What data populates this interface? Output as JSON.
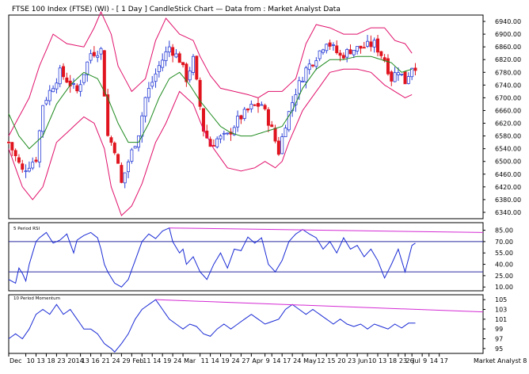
{
  "header": {
    "title": "FTSE 100 Index (FTSE) (WI) -  [ 1 Day ] CandleStick Chart — Data from : Market Analyst Data"
  },
  "panels": {
    "rsi_label": "5 Period RSI",
    "momentum_label": "10 Period Momentum"
  },
  "footer": {
    "source": "Market Analyst 8"
  },
  "colors": {
    "up": "#2a3fd6",
    "down": "#e0141e",
    "band": "#e0106a",
    "mid": "#1e8a1e",
    "indicator": "#1a2bd4",
    "trend": "#d42ad4",
    "ref": "#2a2aa0"
  },
  "chart_data": [
    {
      "type": "candlestick",
      "name": "price",
      "title": "FTSE 100 Index (FTSE) (WI) -  [ 1 Day ] CandleStick Chart — Data from : Market Analyst Data",
      "ylim": [
        6320,
        6960
      ],
      "yticks": [
        6340,
        6380,
        6420,
        6460,
        6500,
        6540,
        6580,
        6620,
        6660,
        6700,
        6740,
        6780,
        6820,
        6860,
        6900,
        6940
      ],
      "indicators": [
        "Bollinger Bands (upper, lower)",
        "Moving Average (middle)"
      ],
      "close_path": [
        [
          0,
          6560
        ],
        [
          4,
          6470
        ],
        [
          8,
          6510
        ],
        [
          10,
          6680
        ],
        [
          15,
          6780
        ],
        [
          20,
          6720
        ],
        [
          24,
          6840
        ],
        [
          27,
          6850
        ],
        [
          29,
          6580
        ],
        [
          31,
          6540
        ],
        [
          33,
          6430
        ],
        [
          35,
          6500
        ],
        [
          38,
          6590
        ],
        [
          40,
          6700
        ],
        [
          44,
          6800
        ],
        [
          47,
          6860
        ],
        [
          50,
          6820
        ],
        [
          52,
          6760
        ],
        [
          54,
          6820
        ],
        [
          57,
          6600
        ],
        [
          59,
          6550
        ],
        [
          61,
          6570
        ],
        [
          64,
          6580
        ],
        [
          67,
          6630
        ],
        [
          71,
          6670
        ],
        [
          74,
          6680
        ],
        [
          77,
          6600
        ],
        [
          79,
          6530
        ],
        [
          81,
          6620
        ],
        [
          84,
          6720
        ],
        [
          87,
          6790
        ],
        [
          90,
          6830
        ],
        [
          93,
          6880
        ],
        [
          97,
          6830
        ],
        [
          100,
          6850
        ],
        [
          104,
          6860
        ],
        [
          107,
          6870
        ],
        [
          110,
          6820
        ],
        [
          112,
          6760
        ],
        [
          114,
          6790
        ],
        [
          116,
          6750
        ],
        [
          118,
          6800
        ]
      ],
      "upper_band_path": [
        [
          0,
          6580
        ],
        [
          6,
          6700
        ],
        [
          9,
          6800
        ],
        [
          13,
          6900
        ],
        [
          17,
          6870
        ],
        [
          22,
          6860
        ],
        [
          25,
          6920
        ],
        [
          27,
          6970
        ],
        [
          30,
          6900
        ],
        [
          32,
          6800
        ],
        [
          36,
          6720
        ],
        [
          40,
          6760
        ],
        [
          43,
          6880
        ],
        [
          46,
          6950
        ],
        [
          50,
          6900
        ],
        [
          54,
          6880
        ],
        [
          56,
          6830
        ],
        [
          59,
          6770
        ],
        [
          62,
          6730
        ],
        [
          66,
          6720
        ],
        [
          70,
          6710
        ],
        [
          73,
          6700
        ],
        [
          76,
          6720
        ],
        [
          80,
          6720
        ],
        [
          84,
          6760
        ],
        [
          87,
          6870
        ],
        [
          90,
          6930
        ],
        [
          94,
          6920
        ],
        [
          98,
          6900
        ],
        [
          102,
          6900
        ],
        [
          106,
          6920
        ],
        [
          110,
          6920
        ],
        [
          113,
          6880
        ],
        [
          116,
          6870
        ],
        [
          118,
          6840
        ]
      ],
      "lower_band_path": [
        [
          0,
          6540
        ],
        [
          4,
          6420
        ],
        [
          7,
          6380
        ],
        [
          10,
          6420
        ],
        [
          14,
          6560
        ],
        [
          18,
          6600
        ],
        [
          22,
          6640
        ],
        [
          25,
          6620
        ],
        [
          28,
          6540
        ],
        [
          30,
          6420
        ],
        [
          33,
          6330
        ],
        [
          36,
          6360
        ],
        [
          39,
          6430
        ],
        [
          43,
          6560
        ],
        [
          46,
          6620
        ],
        [
          50,
          6720
        ],
        [
          54,
          6680
        ],
        [
          57,
          6600
        ],
        [
          60,
          6540
        ],
        [
          64,
          6480
        ],
        [
          68,
          6470
        ],
        [
          72,
          6480
        ],
        [
          75,
          6500
        ],
        [
          78,
          6480
        ],
        [
          80,
          6500
        ],
        [
          82,
          6560
        ],
        [
          86,
          6660
        ],
        [
          90,
          6720
        ],
        [
          94,
          6780
        ],
        [
          98,
          6790
        ],
        [
          102,
          6790
        ],
        [
          106,
          6780
        ],
        [
          110,
          6740
        ],
        [
          113,
          6720
        ],
        [
          116,
          6700
        ],
        [
          118,
          6710
        ]
      ],
      "middle_path": [
        [
          0,
          6650
        ],
        [
          3,
          6580
        ],
        [
          6,
          6540
        ],
        [
          10,
          6580
        ],
        [
          14,
          6680
        ],
        [
          18,
          6740
        ],
        [
          22,
          6780
        ],
        [
          26,
          6760
        ],
        [
          29,
          6700
        ],
        [
          32,
          6620
        ],
        [
          35,
          6560
        ],
        [
          38,
          6560
        ],
        [
          41,
          6620
        ],
        [
          44,
          6700
        ],
        [
          47,
          6760
        ],
        [
          50,
          6780
        ],
        [
          53,
          6740
        ],
        [
          56,
          6690
        ],
        [
          59,
          6650
        ],
        [
          62,
          6610
        ],
        [
          65,
          6590
        ],
        [
          68,
          6580
        ],
        [
          71,
          6580
        ],
        [
          74,
          6590
        ],
        [
          77,
          6600
        ],
        [
          80,
          6610
        ],
        [
          83,
          6660
        ],
        [
          86,
          6730
        ],
        [
          90,
          6790
        ],
        [
          94,
          6820
        ],
        [
          98,
          6820
        ],
        [
          102,
          6830
        ],
        [
          106,
          6830
        ],
        [
          109,
          6820
        ],
        [
          112,
          6810
        ],
        [
          115,
          6780
        ],
        [
          118,
          6790
        ]
      ]
    },
    {
      "type": "line",
      "name": "5 Period RSI",
      "title": "5 Period RSI",
      "ylim": [
        5,
        95
      ],
      "yticks": [
        10.0,
        25.0,
        40.0,
        55.0,
        70.0,
        85.0
      ],
      "reference_lines": [
        70,
        30
      ],
      "path": [
        [
          0,
          20
        ],
        [
          2,
          15
        ],
        [
          3,
          35
        ],
        [
          4,
          28
        ],
        [
          5,
          18
        ],
        [
          6,
          40
        ],
        [
          8,
          70
        ],
        [
          9,
          75
        ],
        [
          11,
          82
        ],
        [
          13,
          68
        ],
        [
          15,
          72
        ],
        [
          17,
          80
        ],
        [
          19,
          55
        ],
        [
          20,
          72
        ],
        [
          22,
          78
        ],
        [
          24,
          82
        ],
        [
          26,
          75
        ],
        [
          27,
          60
        ],
        [
          28,
          40
        ],
        [
          29,
          30
        ],
        [
          31,
          15
        ],
        [
          33,
          10
        ],
        [
          35,
          20
        ],
        [
          37,
          45
        ],
        [
          39,
          70
        ],
        [
          41,
          80
        ],
        [
          43,
          74
        ],
        [
          45,
          84
        ],
        [
          47,
          88
        ],
        [
          48,
          70
        ],
        [
          50,
          55
        ],
        [
          51,
          60
        ],
        [
          52,
          40
        ],
        [
          54,
          50
        ],
        [
          56,
          30
        ],
        [
          58,
          20
        ],
        [
          60,
          40
        ],
        [
          62,
          55
        ],
        [
          64,
          35
        ],
        [
          66,
          60
        ],
        [
          68,
          58
        ],
        [
          70,
          76
        ],
        [
          72,
          68
        ],
        [
          74,
          75
        ],
        [
          76,
          40
        ],
        [
          78,
          30
        ],
        [
          80,
          45
        ],
        [
          82,
          70
        ],
        [
          84,
          80
        ],
        [
          86,
          86
        ],
        [
          88,
          80
        ],
        [
          90,
          75
        ],
        [
          92,
          60
        ],
        [
          94,
          70
        ],
        [
          96,
          55
        ],
        [
          98,
          75
        ],
        [
          100,
          60
        ],
        [
          102,
          65
        ],
        [
          104,
          50
        ],
        [
          106,
          60
        ],
        [
          108,
          45
        ],
        [
          110,
          22
        ],
        [
          112,
          40
        ],
        [
          114,
          60
        ],
        [
          116,
          30
        ],
        [
          118,
          65
        ],
        [
          119,
          68
        ]
      ],
      "trendline": [
        [
          47,
          88
        ],
        [
          119,
          82
        ]
      ]
    },
    {
      "type": "line",
      "name": "10 Period Momentum",
      "title": "10 Period Momentum",
      "ylim": [
        94,
        106
      ],
      "yticks": [
        95,
        97,
        99,
        101,
        103,
        105
      ],
      "path": [
        [
          0,
          97
        ],
        [
          2,
          98
        ],
        [
          4,
          97
        ],
        [
          6,
          99
        ],
        [
          8,
          102
        ],
        [
          10,
          103
        ],
        [
          12,
          102
        ],
        [
          14,
          104
        ],
        [
          16,
          102
        ],
        [
          18,
          103
        ],
        [
          20,
          101
        ],
        [
          22,
          99
        ],
        [
          24,
          99
        ],
        [
          26,
          98
        ],
        [
          28,
          96
        ],
        [
          30,
          95
        ],
        [
          31,
          94.3
        ],
        [
          33,
          96
        ],
        [
          35,
          98
        ],
        [
          37,
          101
        ],
        [
          39,
          103
        ],
        [
          41,
          104
        ],
        [
          43,
          105
        ],
        [
          45,
          103
        ],
        [
          47,
          101
        ],
        [
          49,
          100
        ],
        [
          51,
          99
        ],
        [
          53,
          100
        ],
        [
          55,
          99.5
        ],
        [
          57,
          98
        ],
        [
          59,
          97.5
        ],
        [
          61,
          99
        ],
        [
          63,
          100
        ],
        [
          65,
          99
        ],
        [
          67,
          100
        ],
        [
          69,
          101
        ],
        [
          71,
          102
        ],
        [
          73,
          101
        ],
        [
          75,
          100
        ],
        [
          77,
          100.5
        ],
        [
          79,
          101
        ],
        [
          81,
          103
        ],
        [
          83,
          104
        ],
        [
          85,
          103
        ],
        [
          87,
          102
        ],
        [
          89,
          103
        ],
        [
          91,
          102
        ],
        [
          93,
          101
        ],
        [
          95,
          100
        ],
        [
          97,
          101
        ],
        [
          99,
          100
        ],
        [
          101,
          99.5
        ],
        [
          103,
          100
        ],
        [
          105,
          99
        ],
        [
          107,
          100
        ],
        [
          109,
          99.5
        ],
        [
          111,
          99
        ],
        [
          113,
          100
        ],
        [
          115,
          99.2
        ],
        [
          117,
          100.2
        ],
        [
          119,
          100.2
        ]
      ],
      "trendline": [
        [
          43,
          105
        ],
        [
          119,
          102.5
        ]
      ]
    }
  ],
  "x_axis": {
    "labels": [
      {
        "i": 0,
        "text": "Dec"
      },
      {
        "i": 5,
        "text": "10"
      },
      {
        "i": 8,
        "text": "13"
      },
      {
        "i": 11,
        "text": "18"
      },
      {
        "i": 14,
        "text": "23"
      },
      {
        "i": 17,
        "text": "2014"
      },
      {
        "i": 21,
        "text": "13"
      },
      {
        "i": 24,
        "text": "16"
      },
      {
        "i": 27,
        "text": "21"
      },
      {
        "i": 30,
        "text": "24"
      },
      {
        "i": 33,
        "text": "29"
      },
      {
        "i": 36,
        "text": "Feb"
      },
      {
        "i": 39,
        "text": "11"
      },
      {
        "i": 42,
        "text": "14"
      },
      {
        "i": 45,
        "text": "19"
      },
      {
        "i": 48,
        "text": "24"
      },
      {
        "i": 51,
        "text": "Mar"
      },
      {
        "i": 56,
        "text": "11"
      },
      {
        "i": 59,
        "text": "14"
      },
      {
        "i": 62,
        "text": "19"
      },
      {
        "i": 65,
        "text": "24"
      },
      {
        "i": 68,
        "text": "27"
      },
      {
        "i": 71,
        "text": "Apr"
      },
      {
        "i": 75,
        "text": "9"
      },
      {
        "i": 77,
        "text": "14"
      },
      {
        "i": 80,
        "text": "17"
      },
      {
        "i": 83,
        "text": "24"
      },
      {
        "i": 86,
        "text": "May"
      },
      {
        "i": 90,
        "text": "12"
      },
      {
        "i": 93,
        "text": "15"
      },
      {
        "i": 96,
        "text": "20"
      },
      {
        "i": 99,
        "text": "23"
      },
      {
        "i": 102,
        "text": "Jun"
      },
      {
        "i": 105,
        "text": "10"
      },
      {
        "i": 108,
        "text": "13"
      },
      {
        "i": 111,
        "text": "18"
      },
      {
        "i": 114,
        "text": "23"
      },
      {
        "i": 116,
        "text": "26"
      },
      {
        "i": 118,
        "text": "Jul"
      },
      {
        "i": 121,
        "text": "9"
      },
      {
        "i": 123,
        "text": "14"
      },
      {
        "i": 126,
        "text": "17"
      }
    ]
  }
}
